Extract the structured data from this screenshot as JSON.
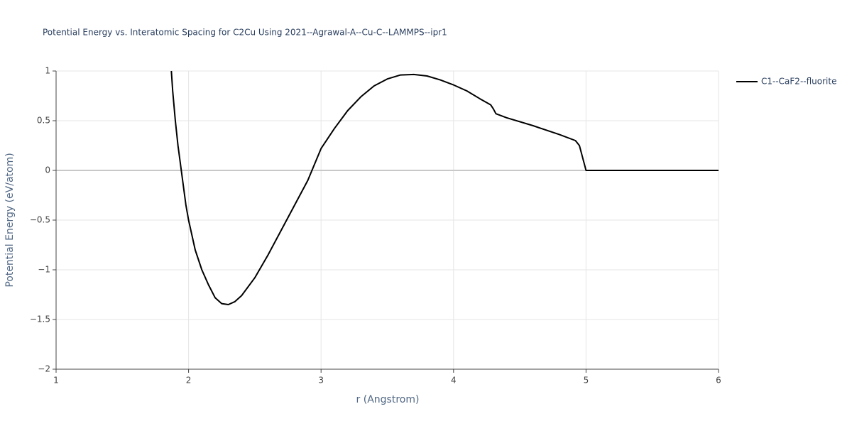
{
  "chart_data": {
    "type": "line",
    "title": "Potential Energy vs. Interatomic Spacing for C2Cu Using 2021--Agrawal-A--Cu-C--LAMMPS--ipr1",
    "x_label": "r (Angstrom)",
    "y_label": "Potential Energy (eV/atom)",
    "xlim": [
      1,
      6
    ],
    "xticks": [
      1,
      2,
      3,
      4,
      5,
      6
    ],
    "ylim": [
      -2,
      1
    ],
    "yticks": [
      1,
      0.5,
      0,
      {
        "value": -0.5,
        "label": "−0.5"
      },
      {
        "value": -1,
        "label": "−1"
      },
      {
        "value": -1.5,
        "label": "−1.5"
      },
      {
        "value": -2,
        "label": "−2"
      }
    ],
    "grid": true,
    "legend_position": "right",
    "x": [
      1.87,
      1.88,
      1.9,
      1.92,
      1.95,
      1.98,
      2.0,
      2.05,
      2.1,
      2.15,
      2.2,
      2.25,
      2.3,
      2.35,
      2.4,
      2.5,
      2.6,
      2.7,
      2.8,
      2.9,
      3.0,
      3.1,
      3.2,
      3.3,
      3.4,
      3.5,
      3.6,
      3.7,
      3.8,
      3.9,
      4.0,
      4.1,
      4.2,
      4.28,
      4.3,
      4.32,
      4.4,
      4.6,
      4.8,
      4.92,
      4.95,
      4.98,
      5.0,
      6.0
    ],
    "series": [
      {
        "name": "C1--CaF2--fluorite",
        "color": "#000000",
        "values": [
          1.0,
          0.8,
          0.5,
          0.25,
          -0.05,
          -0.35,
          -0.5,
          -0.8,
          -1.0,
          -1.15,
          -1.28,
          -1.34,
          -1.35,
          -1.32,
          -1.26,
          -1.08,
          -0.85,
          -0.6,
          -0.35,
          -0.1,
          0.22,
          0.42,
          0.6,
          0.74,
          0.85,
          0.92,
          0.96,
          0.965,
          0.95,
          0.91,
          0.86,
          0.8,
          0.72,
          0.66,
          0.62,
          0.57,
          0.53,
          0.45,
          0.36,
          0.3,
          0.25,
          0.1,
          0,
          0
        ]
      }
    ]
  }
}
